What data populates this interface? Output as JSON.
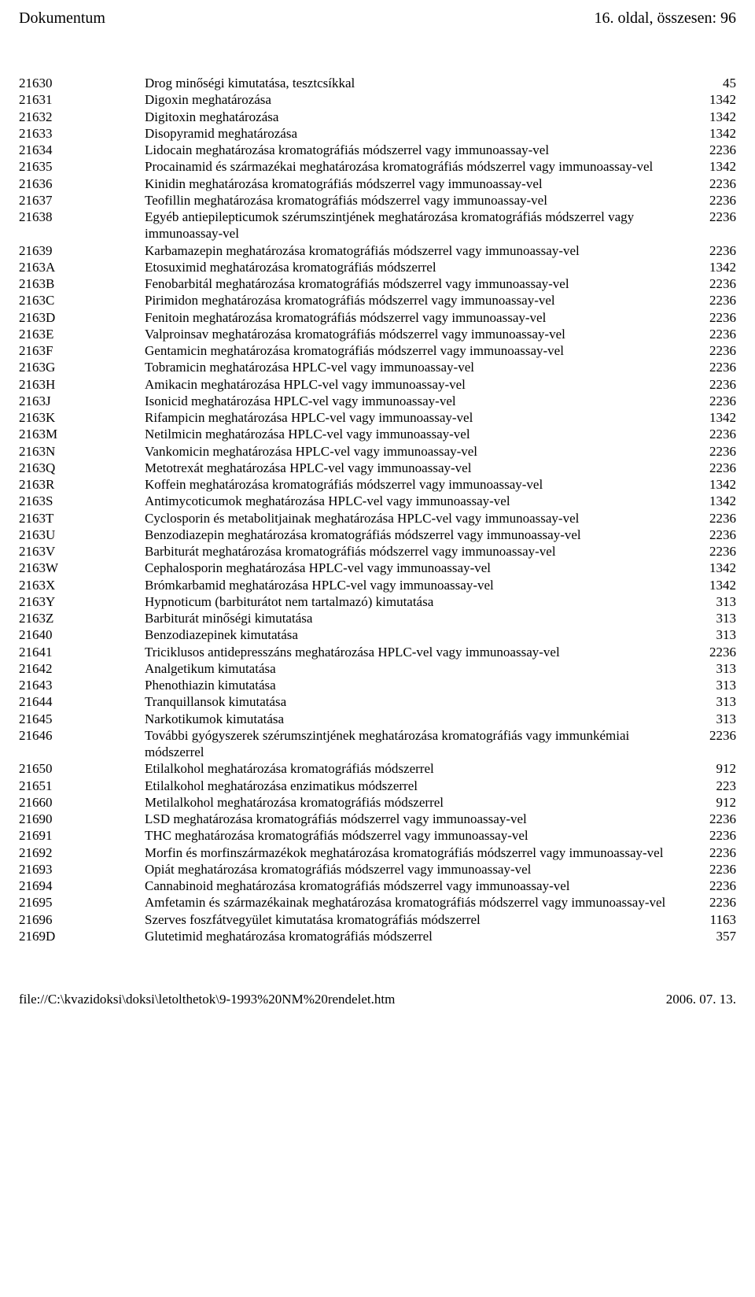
{
  "header": {
    "left": "Dokumentum",
    "right": "16. oldal, összesen: 96"
  },
  "rows": [
    {
      "code": "21630",
      "desc": "Drog minőségi kimutatása, tesztcsíkkal",
      "val": "45"
    },
    {
      "code": "21631",
      "desc": "Digoxin meghatározása",
      "val": "1342"
    },
    {
      "code": "21632",
      "desc": "Digitoxin meghatározása",
      "val": "1342"
    },
    {
      "code": "21633",
      "desc": "Disopyramid meghatározása",
      "val": "1342"
    },
    {
      "code": "21634",
      "desc": "Lidocain meghatározása kromatográfiás módszerrel vagy immunoassay-vel",
      "val": "2236"
    },
    {
      "code": "21635",
      "desc": "Procainamid és származékai meghatározása kromatográfiás módszerrel vagy immunoassay-vel",
      "val": "1342"
    },
    {
      "code": "21636",
      "desc": "Kinidin meghatározása kromatográfiás módszerrel vagy immunoassay-vel",
      "val": "2236"
    },
    {
      "code": "21637",
      "desc": "Teofillin meghatározása kromatográfiás módszerrel vagy immunoassay-vel",
      "val": "2236"
    },
    {
      "code": "21638",
      "desc": "Egyéb antiepilepticumok szérumszintjének meghatározása kromatográfiás módszerrel vagy immunoassay-vel",
      "val": "2236"
    },
    {
      "code": "21639",
      "desc": "Karbamazepin meghatározása kromatográfiás módszerrel vagy immunoassay-vel",
      "val": "2236"
    },
    {
      "code": "2163A",
      "desc": "Etosuximid meghatározása kromatográfiás módszerrel",
      "val": "1342"
    },
    {
      "code": "2163B",
      "desc": "Fenobarbitál meghatározása kromatográfiás módszerrel vagy immunoassay-vel",
      "val": "2236"
    },
    {
      "code": "2163C",
      "desc": "Pirimidon meghatározása kromatográfiás módszerrel vagy immunoassay-vel",
      "val": "2236"
    },
    {
      "code": "2163D",
      "desc": "Fenitoin meghatározása kromatográfiás módszerrel vagy immunoassay-vel",
      "val": "2236"
    },
    {
      "code": "2163E",
      "desc": "Valproinsav meghatározása kromatográfiás módszerrel vagy immunoassay-vel",
      "val": "2236"
    },
    {
      "code": "2163F",
      "desc": "Gentamicin meghatározása kromatográfiás módszerrel vagy immunoassay-vel",
      "val": "2236"
    },
    {
      "code": "2163G",
      "desc": "Tobramicin meghatározása HPLC-vel vagy immunoassay-vel",
      "val": "2236"
    },
    {
      "code": "2163H",
      "desc": "Amikacin meghatározása HPLC-vel vagy immunoassay-vel",
      "val": "2236"
    },
    {
      "code": "2163J",
      "desc": "Isonicid meghatározása HPLC-vel vagy immunoassay-vel",
      "val": "2236"
    },
    {
      "code": "2163K",
      "desc": "Rifampicin meghatározása HPLC-vel vagy immunoassay-vel",
      "val": "1342"
    },
    {
      "code": "2163M",
      "desc": "Netilmicin meghatározása HPLC-vel vagy immunoassay-vel",
      "val": "2236"
    },
    {
      "code": "2163N",
      "desc": "Vankomicin meghatározása HPLC-vel vagy immunoassay-vel",
      "val": "2236"
    },
    {
      "code": "2163Q",
      "desc": "Metotrexát meghatározása HPLC-vel vagy immunoassay-vel",
      "val": "2236"
    },
    {
      "code": "2163R",
      "desc": "Koffein meghatározása kromatográfiás módszerrel vagy immunoassay-vel",
      "val": "1342"
    },
    {
      "code": "2163S",
      "desc": "Antimycoticumok meghatározása HPLC-vel vagy immunoassay-vel",
      "val": "1342"
    },
    {
      "code": "2163T",
      "desc": "Cyclosporin és metabolitjainak meghatározása HPLC-vel vagy immunoassay-vel",
      "val": "2236"
    },
    {
      "code": "2163U",
      "desc": "Benzodiazepin meghatározása kromatográfiás módszerrel vagy immunoassay-vel",
      "val": "2236"
    },
    {
      "code": "2163V",
      "desc": "Barbiturát meghatározása kromatográfiás módszerrel vagy immunoassay-vel",
      "val": "2236"
    },
    {
      "code": "2163W",
      "desc": "Cephalosporin meghatározása HPLC-vel vagy immunoassay-vel",
      "val": "1342"
    },
    {
      "code": "2163X",
      "desc": "Brómkarbamid meghatározása HPLC-vel vagy immunoassay-vel",
      "val": "1342"
    },
    {
      "code": "2163Y",
      "desc": "Hypnoticum (barbiturátot nem tartalmazó) kimutatása",
      "val": "313"
    },
    {
      "code": "2163Z",
      "desc": "Barbiturát minőségi kimutatása",
      "val": "313"
    },
    {
      "code": "21640",
      "desc": "Benzodiazepinek kimutatása",
      "val": "313"
    },
    {
      "code": "21641",
      "desc": "Triciklusos antidepresszáns meghatározása HPLC-vel vagy immunoassay-vel",
      "val": "2236"
    },
    {
      "code": "21642",
      "desc": "Analgetikum kimutatása",
      "val": "313"
    },
    {
      "code": "21643",
      "desc": "Phenothiazin kimutatása",
      "val": "313"
    },
    {
      "code": "21644",
      "desc": "Tranquillansok kimutatása",
      "val": "313"
    },
    {
      "code": "21645",
      "desc": "Narkotikumok kimutatása",
      "val": "313"
    },
    {
      "code": "21646",
      "desc": "További gyógyszerek szérumszintjének meghatározása kromatográfiás vagy immunkémiai módszerrel",
      "val": "2236"
    },
    {
      "code": "21650",
      "desc": "Etilalkohol meghatározása kromatográfiás módszerrel",
      "val": "912"
    },
    {
      "code": "21651",
      "desc": "Etilalkohol meghatározása enzimatikus módszerrel",
      "val": "223"
    },
    {
      "code": "21660",
      "desc": "Metilalkohol meghatározása kromatográfiás módszerrel",
      "val": "912"
    },
    {
      "code": "21690",
      "desc": "LSD meghatározása kromatográfiás módszerrel vagy immunoassay-vel",
      "val": "2236"
    },
    {
      "code": "21691",
      "desc": "THC meghatározása kromatográfiás módszerrel vagy immunoassay-vel",
      "val": "2236"
    },
    {
      "code": "21692",
      "desc": "Morfin és morfinszármazékok meghatározása kromatográfiás módszerrel vagy immunoassay-vel",
      "val": "2236"
    },
    {
      "code": "21693",
      "desc": "Opiát meghatározása kromatográfiás módszerrel vagy immunoassay-vel",
      "val": "2236"
    },
    {
      "code": "21694",
      "desc": "Cannabinoid meghatározása kromatográfiás módszerrel vagy immunoassay-vel",
      "val": "2236"
    },
    {
      "code": "21695",
      "desc": "Amfetamin és származékainak meghatározása kromatográfiás módszerrel vagy immunoassay-vel",
      "val": "2236"
    },
    {
      "code": "21696",
      "desc": "Szerves foszfátvegyület kimutatása kromatográfiás módszerrel",
      "val": "1163"
    },
    {
      "code": "2169D",
      "desc": "Glutetimid meghatározása kromatográfiás módszerrel",
      "val": "357"
    }
  ],
  "footer": {
    "left": "file://C:\\kvazidoksi\\doksi\\letolthetok\\9-1993%20NM%20rendelet.htm",
    "right": "2006. 07. 13."
  }
}
